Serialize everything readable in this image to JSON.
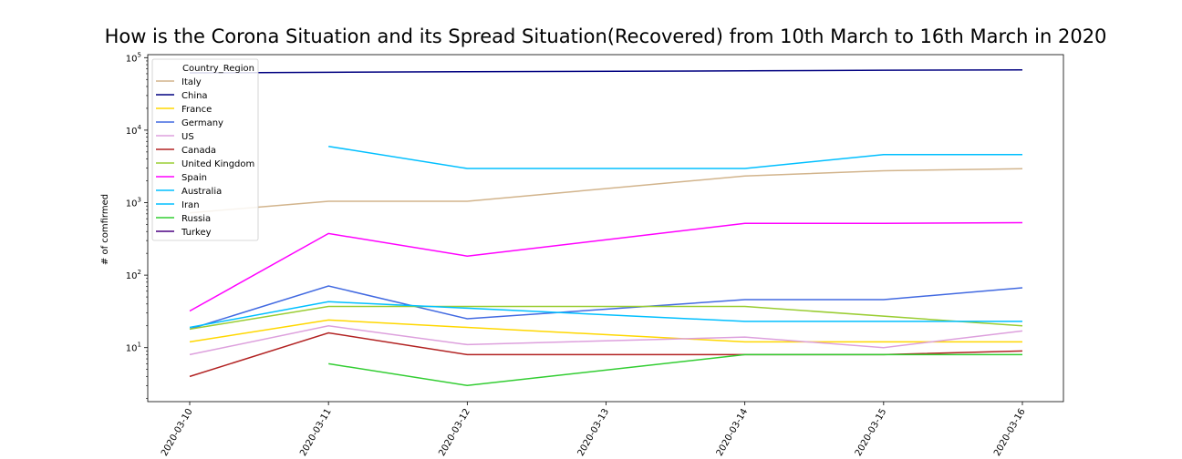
{
  "chart_data": {
    "type": "line",
    "title": "How is the Corona Situation and its Spread Situation(Recovered) from 10th March to 16th March in 2020",
    "xlabel": "",
    "ylabel": "# of comfirmed",
    "yscale": "log",
    "ylim": [
      1.8,
      110000
    ],
    "grid": false,
    "legend_title": "Country_Region",
    "legend_position": "top-left",
    "x": [
      "2020-03-10",
      "2020-03-11",
      "2020-03-12",
      "2020-03-13",
      "2020-03-14",
      "2020-03-15",
      "2020-03-16"
    ],
    "y_ticks": [
      {
        "value": 10,
        "base": "10",
        "exp": "1"
      },
      {
        "value": 100,
        "base": "10",
        "exp": "2"
      },
      {
        "value": 1000,
        "base": "10",
        "exp": "3"
      },
      {
        "value": 10000,
        "base": "10",
        "exp": "4"
      },
      {
        "value": 100000,
        "base": "10",
        "exp": "5"
      }
    ],
    "series": [
      {
        "name": "Italy",
        "color": "#d2b48c",
        "points": [
          [
            0,
            724
          ],
          [
            1,
            1045
          ],
          [
            2,
            1045
          ],
          [
            4,
            2335
          ],
          [
            5,
            2749
          ],
          [
            6,
            2941
          ]
        ]
      },
      {
        "name": "China",
        "color": "#000080",
        "points": [
          [
            0,
            61644
          ],
          [
            1,
            62793
          ],
          [
            2,
            64111
          ],
          [
            4,
            65660
          ],
          [
            5,
            67017
          ],
          [
            6,
            67910
          ]
        ]
      },
      {
        "name": "France",
        "color": "#ffd700",
        "points": [
          [
            0,
            12
          ],
          [
            1,
            24
          ],
          [
            2,
            19
          ],
          [
            4,
            12
          ],
          [
            5,
            12
          ],
          [
            6,
            12
          ]
        ]
      },
      {
        "name": "Germany",
        "color": "#4169e1",
        "points": [
          [
            0,
            18
          ],
          [
            1,
            71
          ],
          [
            2,
            25
          ],
          [
            4,
            46
          ],
          [
            5,
            46
          ],
          [
            6,
            67
          ]
        ]
      },
      {
        "name": "US",
        "color": "#dda0dd",
        "points": [
          [
            0,
            8
          ],
          [
            1,
            20
          ],
          [
            2,
            11
          ],
          [
            4,
            14
          ],
          [
            5,
            10
          ],
          [
            6,
            17
          ]
        ]
      },
      {
        "name": "Canada",
        "color": "#b22222",
        "points": [
          [
            0,
            4
          ],
          [
            1,
            16
          ],
          [
            2,
            8
          ],
          [
            4,
            8
          ],
          [
            5,
            8
          ],
          [
            6,
            9
          ]
        ]
      },
      {
        "name": "United Kingdom",
        "color": "#9acd32",
        "points": [
          [
            0,
            18
          ],
          [
            1,
            37
          ],
          [
            2,
            37
          ],
          [
            4,
            37
          ],
          [
            6,
            20
          ]
        ]
      },
      {
        "name": "Spain",
        "color": "#ff00ff",
        "points": [
          [
            0,
            32
          ],
          [
            1,
            375
          ],
          [
            2,
            183
          ],
          [
            4,
            517
          ],
          [
            5,
            517
          ],
          [
            6,
            530
          ]
        ]
      },
      {
        "name": "Australia",
        "color": "#00bfff",
        "points": [
          [
            0,
            19
          ],
          [
            1,
            43
          ],
          [
            2,
            35
          ],
          [
            4,
            23
          ],
          [
            5,
            23
          ],
          [
            6,
            23
          ]
        ]
      },
      {
        "name": "Iran",
        "color": "#00bfff",
        "points": [
          [
            1,
            5979
          ],
          [
            2,
            2959
          ],
          [
            4,
            2959
          ],
          [
            5,
            4590
          ],
          [
            6,
            4590
          ]
        ]
      },
      {
        "name": "Russia",
        "color": "#32cd32",
        "points": [
          [
            1,
            6
          ],
          [
            2,
            3
          ],
          [
            4,
            8
          ],
          [
            5,
            8
          ],
          [
            6,
            8
          ]
        ]
      },
      {
        "name": "Turkey",
        "color": "#4b0082",
        "points": []
      }
    ]
  }
}
